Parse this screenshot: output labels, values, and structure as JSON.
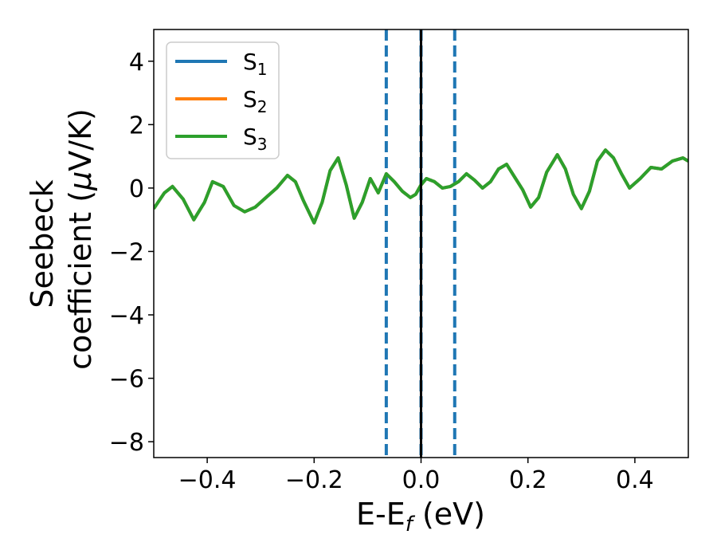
{
  "chart_data": {
    "type": "line",
    "xlabel_main": "E-E",
    "xlabel_sub": "f",
    "xlabel_unit": " (eV)",
    "ylabel_line1": "Seebeck",
    "ylabel_line2": "coefficient  (",
    "ylabel_mu": "μ",
    "ylabel_unit": "V/K)",
    "xlim": [
      -0.5,
      0.5
    ],
    "ylim": [
      -8.5,
      5.0
    ],
    "xticks": [
      -0.4,
      -0.2,
      0.0,
      0.2,
      0.4
    ],
    "xtick_labels": [
      "−0.4",
      "−0.2",
      "0.0",
      "0.2",
      "0.4"
    ],
    "yticks": [
      -8,
      -6,
      -4,
      -2,
      0,
      2,
      4
    ],
    "ytick_labels": [
      "−8",
      "−6",
      "−4",
      "−2",
      "0",
      "2",
      "4"
    ],
    "grid": false,
    "legend_position": "top-left",
    "vlines": [
      {
        "x": -0.065,
        "style": "dashed",
        "color": "#1f77b4"
      },
      {
        "x": 0.0,
        "style": "dashed",
        "color": "#1f77b4"
      },
      {
        "x": 0.063,
        "style": "dashed",
        "color": "#1f77b4"
      },
      {
        "x": 0.0,
        "style": "solid",
        "color": "#000000"
      }
    ],
    "x": [
      -0.5,
      -0.48,
      -0.465,
      -0.445,
      -0.425,
      -0.405,
      -0.39,
      -0.37,
      -0.35,
      -0.33,
      -0.31,
      -0.29,
      -0.27,
      -0.25,
      -0.235,
      -0.22,
      -0.2,
      -0.185,
      -0.17,
      -0.155,
      -0.14,
      -0.125,
      -0.11,
      -0.095,
      -0.08,
      -0.065,
      -0.05,
      -0.035,
      -0.02,
      -0.01,
      0.0,
      0.01,
      0.025,
      0.04,
      0.055,
      0.07,
      0.085,
      0.1,
      0.115,
      0.13,
      0.145,
      0.16,
      0.175,
      0.19,
      0.205,
      0.22,
      0.235,
      0.255,
      0.27,
      0.285,
      0.3,
      0.315,
      0.33,
      0.345,
      0.36,
      0.375,
      0.39,
      0.41,
      0.43,
      0.45,
      0.47,
      0.49,
      0.5
    ],
    "series": [
      {
        "name": "S",
        "sub": "1",
        "color": "#1f77b4",
        "values": [
          -0.65,
          -0.15,
          0.05,
          -0.35,
          -1.0,
          -0.45,
          0.2,
          0.05,
          -0.55,
          -0.75,
          -0.6,
          -0.3,
          0.0,
          0.4,
          0.2,
          -0.4,
          -1.1,
          -0.45,
          0.55,
          0.95,
          0.1,
          -0.95,
          -0.45,
          0.3,
          -0.15,
          0.45,
          0.2,
          -0.1,
          -0.3,
          -0.2,
          0.1,
          0.3,
          0.2,
          0.0,
          0.05,
          0.2,
          0.45,
          0.25,
          0.0,
          0.2,
          0.6,
          0.75,
          0.35,
          -0.05,
          -0.6,
          -0.3,
          0.5,
          1.05,
          0.6,
          -0.2,
          -0.65,
          -0.1,
          0.85,
          1.2,
          0.95,
          0.45,
          0.0,
          0.3,
          0.65,
          0.6,
          0.85,
          0.95,
          0.85
        ]
      },
      {
        "name": "S",
        "sub": "2",
        "color": "#ff7f0e",
        "values": [
          -0.65,
          -0.15,
          0.05,
          -0.35,
          -1.0,
          -0.45,
          0.2,
          0.05,
          -0.55,
          -0.75,
          -0.6,
          -0.3,
          0.0,
          0.4,
          0.2,
          -0.4,
          -1.1,
          -0.45,
          0.55,
          0.95,
          0.1,
          -0.95,
          -0.45,
          0.3,
          -0.15,
          0.45,
          0.2,
          -0.1,
          -0.3,
          -0.2,
          0.1,
          0.3,
          0.2,
          0.0,
          0.05,
          0.2,
          0.45,
          0.25,
          0.0,
          0.2,
          0.6,
          0.75,
          0.35,
          -0.05,
          -0.6,
          -0.3,
          0.5,
          1.05,
          0.6,
          -0.2,
          -0.65,
          -0.1,
          0.85,
          1.2,
          0.95,
          0.45,
          0.0,
          0.3,
          0.65,
          0.6,
          0.85,
          0.95,
          0.85
        ]
      },
      {
        "name": "S",
        "sub": "3",
        "color": "#2ca02c",
        "values": [
          -0.65,
          -0.15,
          0.05,
          -0.35,
          -1.0,
          -0.45,
          0.2,
          0.05,
          -0.55,
          -0.75,
          -0.6,
          -0.3,
          0.0,
          0.4,
          0.2,
          -0.4,
          -1.1,
          -0.45,
          0.55,
          0.95,
          0.1,
          -0.95,
          -0.45,
          0.3,
          -0.15,
          0.45,
          0.2,
          -0.1,
          -0.3,
          -0.2,
          0.1,
          0.3,
          0.2,
          0.0,
          0.05,
          0.2,
          0.45,
          0.25,
          0.0,
          0.2,
          0.6,
          0.75,
          0.35,
          -0.05,
          -0.6,
          -0.3,
          0.5,
          1.05,
          0.6,
          -0.2,
          -0.65,
          -0.1,
          0.85,
          1.2,
          0.95,
          0.45,
          0.0,
          0.3,
          0.65,
          0.6,
          0.85,
          0.95,
          0.85
        ]
      }
    ]
  }
}
